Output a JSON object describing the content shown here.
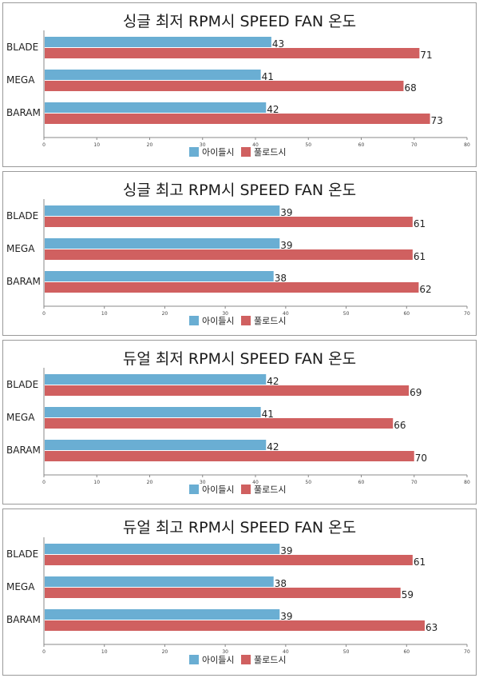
{
  "colors": {
    "idle": "#6aaed3",
    "full": "#d06060",
    "axis": "#888888",
    "panel_border": "#9a9a9a"
  },
  "chart_data": [
    {
      "type": "bar",
      "orientation": "horizontal",
      "title": "싱글 최저 RPM시 SPEED FAN 온도",
      "categories": [
        "BLADE",
        "MEGA",
        "BARAM"
      ],
      "series": [
        {
          "name": "아이들시",
          "values": [
            43,
            41,
            42
          ],
          "color": "#6aaed3"
        },
        {
          "name": "풀로드시",
          "values": [
            71,
            68,
            73
          ],
          "color": "#d06060"
        }
      ],
      "xlim": [
        0,
        80
      ],
      "ticks": [
        0,
        10,
        20,
        30,
        40,
        50,
        60,
        70,
        80
      ],
      "legend": "bottom",
      "grid": false
    },
    {
      "type": "bar",
      "orientation": "horizontal",
      "title": "싱글 최고 RPM시 SPEED FAN 온도",
      "categories": [
        "BLADE",
        "MEGA",
        "BARAM"
      ],
      "series": [
        {
          "name": "아이들시",
          "values": [
            39,
            39,
            38
          ],
          "color": "#6aaed3"
        },
        {
          "name": "풀로드시",
          "values": [
            61,
            61,
            62
          ],
          "color": "#d06060"
        }
      ],
      "xlim": [
        0,
        70
      ],
      "ticks": [
        0,
        10,
        20,
        30,
        40,
        50,
        60,
        70
      ],
      "legend": "bottom",
      "grid": false
    },
    {
      "type": "bar",
      "orientation": "horizontal",
      "title": "듀얼 최저 RPM시 SPEED FAN 온도",
      "categories": [
        "BLADE",
        "MEGA",
        "BARAM"
      ],
      "series": [
        {
          "name": "아이들시",
          "values": [
            42,
            41,
            42
          ],
          "color": "#6aaed3"
        },
        {
          "name": "풀로드시",
          "values": [
            69,
            66,
            70
          ],
          "color": "#d06060"
        }
      ],
      "xlim": [
        0,
        80
      ],
      "ticks": [
        0,
        10,
        20,
        30,
        40,
        50,
        60,
        70,
        80
      ],
      "legend": "bottom",
      "grid": false
    },
    {
      "type": "bar",
      "orientation": "horizontal",
      "title": "듀얼 최고 RPM시 SPEED FAN 온도",
      "categories": [
        "BLADE",
        "MEGA",
        "BARAM"
      ],
      "series": [
        {
          "name": "아이들시",
          "values": [
            39,
            38,
            39
          ],
          "color": "#6aaed3"
        },
        {
          "name": "풀로드시",
          "values": [
            61,
            59,
            63
          ],
          "color": "#d06060"
        }
      ],
      "xlim": [
        0,
        70
      ],
      "ticks": [
        0,
        10,
        20,
        30,
        40,
        50,
        60,
        70
      ],
      "legend": "bottom",
      "grid": false
    }
  ]
}
